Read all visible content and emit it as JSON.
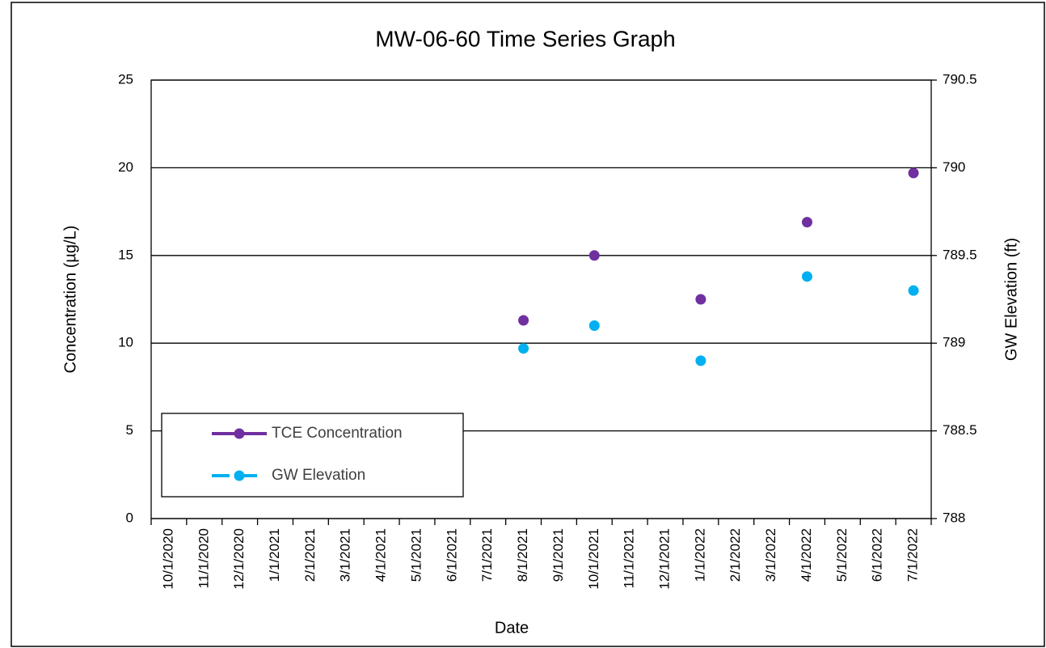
{
  "chart_data": {
    "type": "line",
    "title": "MW-06-60 Time Series Graph",
    "x_label": "Date",
    "y_label": "Concentration (µg/L)",
    "y2_label": "GW Elevation (ft)",
    "categories": [
      "10/1/2020",
      "11/1/2020",
      "12/1/2020",
      "1/1/2021",
      "2/1/2021",
      "3/1/2021",
      "4/1/2021",
      "5/1/2021",
      "6/1/2021",
      "7/1/2021",
      "8/1/2021",
      "9/1/2021",
      "10/1/2021",
      "11/1/2021",
      "12/1/2021",
      "1/1/2022",
      "2/1/2022",
      "3/1/2022",
      "4/1/2022",
      "5/1/2022",
      "6/1/2022",
      "7/1/2022"
    ],
    "series": [
      {
        "name": "TCE Concentration",
        "color": "#7030a0",
        "dashed": false,
        "values": [
          null,
          null,
          null,
          null,
          null,
          null,
          null,
          null,
          null,
          null,
          11.3,
          null,
          15,
          null,
          null,
          12.5,
          null,
          null,
          16.9,
          null,
          null,
          19.7
        ]
      },
      {
        "name": "GW Elevation",
        "color": "#00b0f0",
        "dashed": true,
        "axis": "y2",
        "values": [
          null,
          null,
          null,
          null,
          null,
          null,
          null,
          null,
          null,
          null,
          788.97,
          null,
          789.1,
          null,
          null,
          788.9,
          null,
          null,
          789.38,
          null,
          null,
          789.3
        ]
      }
    ],
    "ylim": [
      0,
      25
    ],
    "yticks": [
      0,
      5,
      10,
      15,
      20,
      25
    ],
    "y2lim": [
      788,
      790.5
    ],
    "y2ticks": [
      788,
      788.5,
      789,
      789.5,
      790,
      790.5
    ],
    "grid": true,
    "legend": "lower left"
  }
}
